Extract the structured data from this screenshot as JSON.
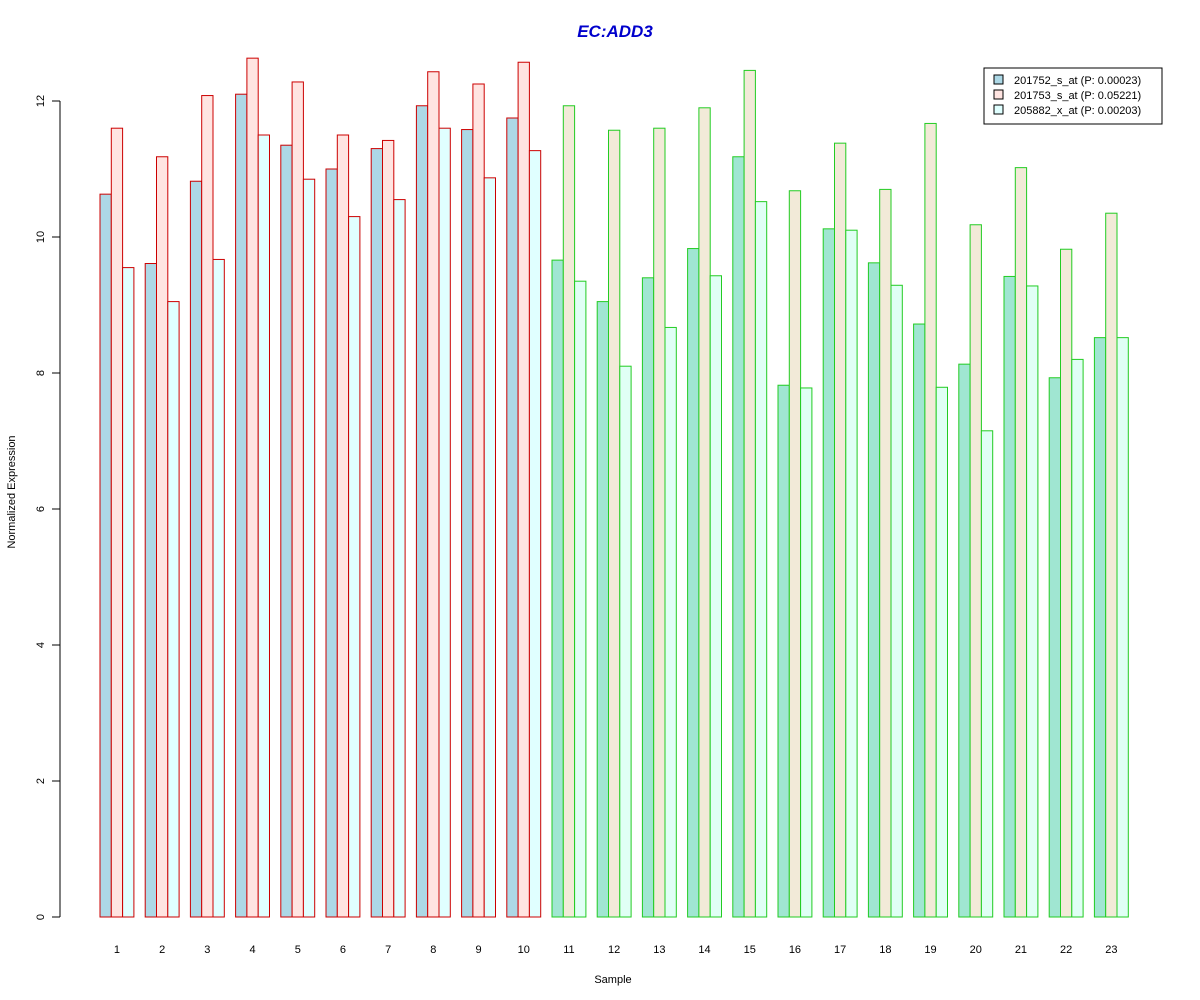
{
  "chart_data": {
    "type": "bar",
    "title": "EC:ADD3",
    "title_color": "#0000CC",
    "xlabel": "Sample",
    "ylabel": "Normalized Expression",
    "ylim": [
      0,
      12.5
    ],
    "yticks": [
      0,
      2,
      4,
      6,
      8,
      10,
      12
    ],
    "grid": false,
    "legend_position": "top-right",
    "categories": [
      "1",
      "2",
      "3",
      "4",
      "5",
      "6",
      "7",
      "8",
      "9",
      "10",
      "11",
      "12",
      "13",
      "14",
      "15",
      "16",
      "17",
      "18",
      "19",
      "20",
      "21",
      "22",
      "23"
    ],
    "group_border_colors": {
      "red": "#CC0000",
      "green": "#22CC22"
    },
    "group_by_category": [
      "red",
      "red",
      "red",
      "red",
      "red",
      "red",
      "red",
      "red",
      "red",
      "red",
      "green",
      "green",
      "green",
      "green",
      "green",
      "green",
      "green",
      "green",
      "green",
      "green",
      "green",
      "green",
      "green"
    ],
    "series": [
      {
        "name": "201752_s_at (P: 0.00023)",
        "fill_by_group": {
          "red": "#ADD8E6",
          "green": "#A0E6D2"
        },
        "legend_fill": "#ADD8E6",
        "values": [
          10.63,
          9.61,
          10.82,
          12.1,
          11.35,
          11.0,
          11.3,
          11.93,
          11.58,
          11.75,
          9.66,
          9.05,
          9.4,
          9.83,
          11.18,
          7.82,
          10.12,
          9.62,
          8.72,
          8.13,
          9.42,
          7.93,
          8.52
        ]
      },
      {
        "name": "201753_s_at (P: 0.05221)",
        "fill_by_group": {
          "red": "#FFE4E1",
          "green": "#F2EAD8"
        },
        "legend_fill": "#FFE4E1",
        "values": [
          11.6,
          11.18,
          12.08,
          12.63,
          12.28,
          11.5,
          11.42,
          12.43,
          12.25,
          12.57,
          11.93,
          11.57,
          11.6,
          11.9,
          12.45,
          10.68,
          11.38,
          10.7,
          11.67,
          10.18,
          11.02,
          9.82,
          10.35
        ]
      },
      {
        "name": "205882_x_at (P: 0.00203)",
        "fill_by_group": {
          "red": "#E0FFFF",
          "green": "#E0FFF5"
        },
        "legend_fill": "#E0FFFF",
        "values": [
          9.55,
          9.05,
          9.67,
          11.5,
          10.85,
          10.3,
          10.55,
          11.6,
          10.87,
          11.27,
          9.35,
          8.1,
          8.67,
          9.43,
          10.52,
          7.78,
          10.1,
          9.29,
          7.79,
          7.15,
          9.28,
          8.2,
          8.52
        ]
      }
    ]
  }
}
